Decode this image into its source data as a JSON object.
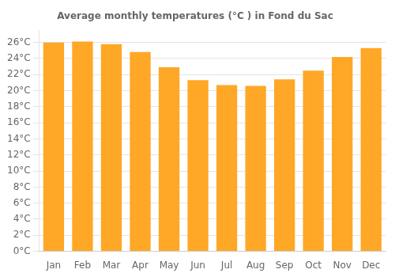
{
  "chart_data": {
    "type": "bar",
    "title": "Average monthly temperatures (°C ) in Fond du Sac",
    "categories": [
      "Jan",
      "Feb",
      "Mar",
      "Apr",
      "May",
      "Jun",
      "Jul",
      "Aug",
      "Sep",
      "Oct",
      "Nov",
      "Dec"
    ],
    "values": [
      26.0,
      26.1,
      25.8,
      24.8,
      22.9,
      21.3,
      20.7,
      20.6,
      21.4,
      22.5,
      24.2,
      25.3
    ],
    "color": "#FFA726",
    "ylim": [
      0,
      27.5
    ],
    "yticks": [
      {
        "value": 0,
        "label": "0°C"
      },
      {
        "value": 2,
        "label": "2°C"
      },
      {
        "value": 4,
        "label": "4°C"
      },
      {
        "value": 6,
        "label": "6°C"
      },
      {
        "value": 8,
        "label": "8°C"
      },
      {
        "value": 10,
        "label": "10°C"
      },
      {
        "value": 12,
        "label": "12°C"
      },
      {
        "value": 14,
        "label": "14°C"
      },
      {
        "value": 16,
        "label": "16°C"
      },
      {
        "value": 18,
        "label": "18°C"
      },
      {
        "value": 20,
        "label": "20°C"
      },
      {
        "value": 22,
        "label": "22°C"
      },
      {
        "value": 24,
        "label": "24°C"
      },
      {
        "value": 26,
        "label": "26°C"
      }
    ],
    "grid": true
  }
}
